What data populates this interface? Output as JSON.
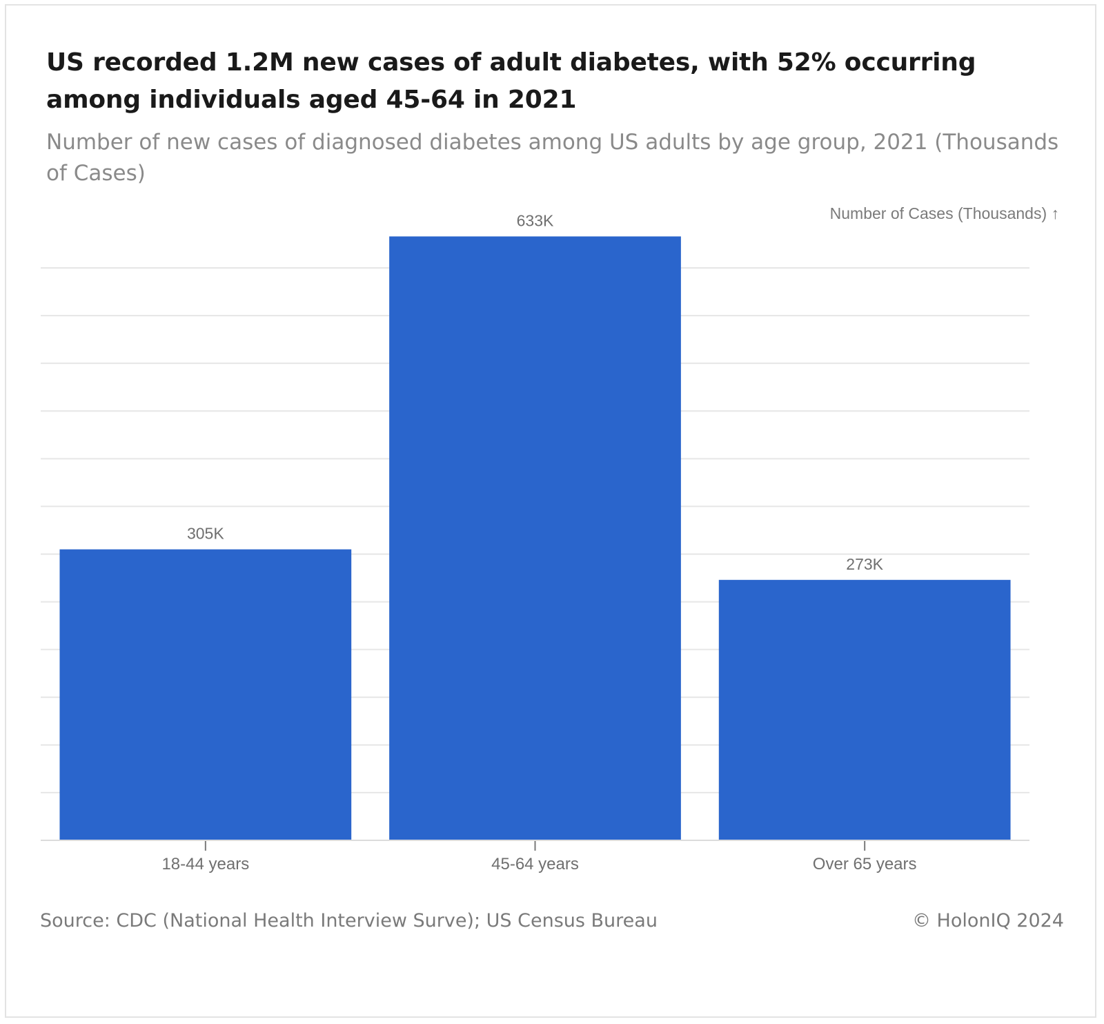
{
  "chart_data": {
    "type": "bar",
    "title": "US recorded 1.2M new cases of adult diabetes, with 52% occurring among individuals aged 45-64 in 2021",
    "subtitle": "Number of new cases of diagnosed diabetes among US adults by age group, 2021 (Thousands of Cases)",
    "ylabel": "Number of Cases (Thousands) ↑",
    "categories": [
      "18-44 years",
      "45-64 years",
      "Over 65 years"
    ],
    "values": [
      305,
      633,
      273
    ],
    "data_labels": [
      "305K",
      "633K",
      "273K"
    ],
    "ylim": [
      0,
      600
    ],
    "grid": true,
    "bar_color": "#2a65cc"
  },
  "footer": {
    "source": "Source: CDC (National Health Interview Surve); US Census Bureau",
    "copyright": "© HolonIQ 2024"
  }
}
